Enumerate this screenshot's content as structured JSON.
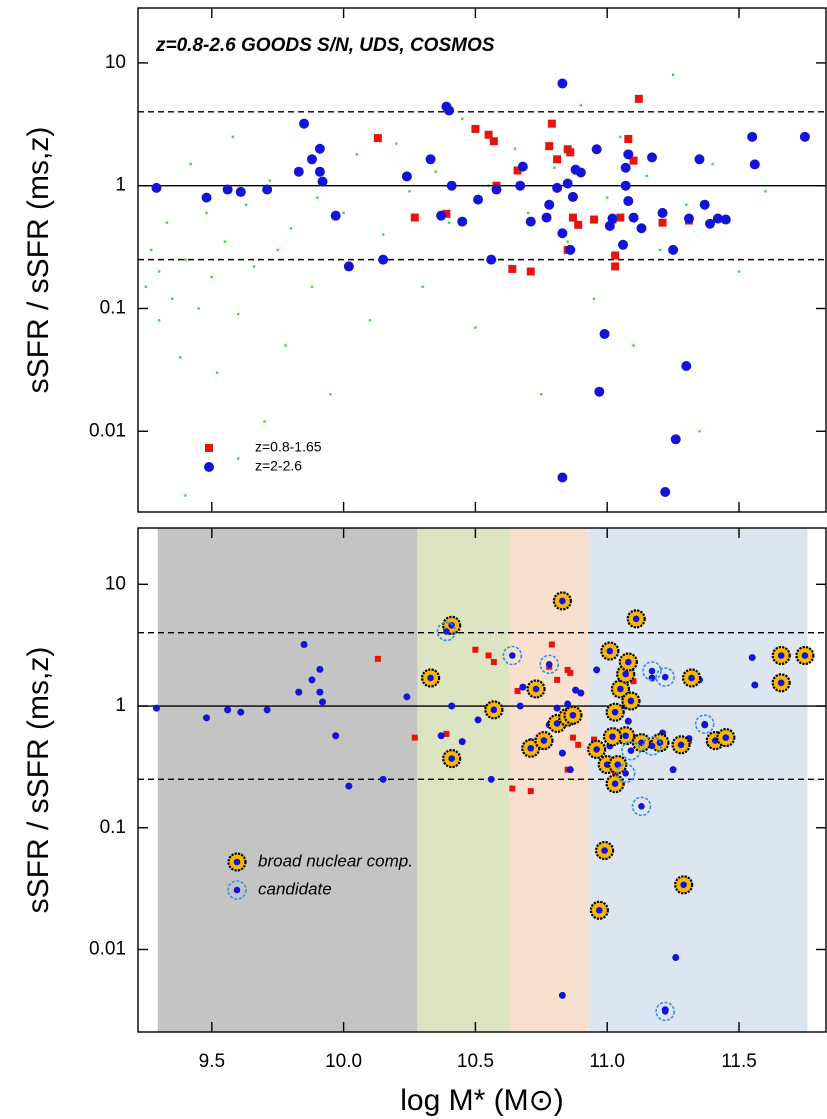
{
  "chart_data": [
    {
      "type": "scatter",
      "title": "z=0.8-2.6 GOODS S/N, UDS, COSMOS",
      "y_label": "sSFR / sSFR (ms,z)",
      "ylog": true,
      "xlim": [
        9.22,
        11.83
      ],
      "ylim": [
        0.0022,
        28
      ],
      "xticks": [
        9.5,
        {
          "value": 10,
          "label": "10.0"
        },
        10.5,
        {
          "value": 11,
          "label": "11.0"
        },
        11.5
      ],
      "yticks": [
        0.01,
        0.1,
        1,
        10
      ],
      "hlines": [
        {
          "value": 4,
          "dash": true
        },
        {
          "value": 1,
          "dash": false
        },
        {
          "value": 0.25,
          "dash": true
        }
      ],
      "legend": "lower left",
      "field_points": {
        "color": "#33e033",
        "x": [
          9.25,
          9.27,
          9.3,
          9.3,
          9.33,
          9.35,
          9.38,
          9.4,
          9.42,
          9.45,
          9.48,
          9.5,
          9.52,
          9.55,
          9.58,
          9.6,
          9.63,
          9.66,
          9.7,
          9.72,
          9.75,
          9.78,
          9.8,
          9.85,
          9.88,
          9.9,
          9.95,
          10.0,
          10.05,
          10.1,
          10.15,
          10.2,
          10.25,
          10.3,
          10.35,
          10.4,
          10.45,
          10.5,
          10.55,
          10.6,
          10.65,
          10.7,
          10.75,
          10.8,
          10.85,
          10.9,
          10.95,
          11.0,
          11.05,
          11.1,
          11.15,
          11.2,
          11.25,
          11.3,
          11.35,
          11.4,
          11.5,
          11.6,
          9.4,
          9.6
        ],
        "y": [
          0.15,
          0.3,
          0.08,
          0.2,
          0.5,
          0.12,
          0.04,
          0.25,
          1.5,
          0.1,
          0.6,
          0.18,
          0.03,
          0.35,
          2.5,
          0.09,
          0.7,
          0.22,
          0.012,
          1.1,
          0.3,
          0.05,
          0.45,
          3.0,
          0.15,
          0.8,
          0.02,
          0.6,
          1.8,
          0.08,
          0.4,
          2.2,
          0.9,
          0.15,
          1.3,
          0.5,
          3.5,
          0.07,
          1.0,
          0.25,
          2.0,
          0.6,
          0.02,
          1.4,
          0.35,
          4.5,
          0.12,
          0.8,
          2.5,
          0.05,
          1.2,
          0.3,
          8,
          0.7,
          0.01,
          1.5,
          0.2,
          0.9,
          0.003,
          0.006
        ]
      },
      "series": [
        {
          "name": "z=0.8-1.65",
          "color": "#e8140c",
          "marker": "square",
          "marker_size": 8,
          "x": [
            10.13,
            10.27,
            10.39,
            10.5,
            10.55,
            10.58,
            10.57,
            10.66,
            10.79,
            10.78,
            10.81,
            10.85,
            10.86,
            10.64,
            10.71,
            10.85,
            10.87,
            10.95,
            11.02,
            11.03,
            11.03,
            11.05,
            11.08,
            11.1,
            11.12,
            11.21,
            11.31,
            10.89
          ],
          "y": [
            2.44,
            0.55,
            0.59,
            2.9,
            2.6,
            1.0,
            2.3,
            1.33,
            3.2,
            2.1,
            1.64,
            1.98,
            1.87,
            0.21,
            0.2,
            0.3,
            0.55,
            0.53,
            0.53,
            0.27,
            0.22,
            0.55,
            2.4,
            1.6,
            5.1,
            0.5,
            0.52,
            0.48
          ]
        },
        {
          "name": "z=2-2.6",
          "color": "#1414d8",
          "marker": "circle",
          "marker_size": 10,
          "x": [
            9.29,
            9.48,
            9.56,
            9.61,
            9.71,
            9.85,
            9.83,
            9.88,
            9.91,
            9.91,
            9.92,
            9.97,
            10.02,
            10.15,
            10.24,
            10.33,
            10.4,
            10.39,
            10.37,
            10.41,
            10.45,
            10.51,
            10.56,
            10.58,
            10.68,
            10.67,
            10.71,
            10.77,
            10.78,
            10.81,
            10.83,
            10.85,
            10.87,
            10.88,
            10.83,
            10.86,
            10.9,
            10.96,
            10.99,
            10.97,
            11.02,
            11.06,
            11.07,
            11.07,
            11.08,
            11.1,
            11.13,
            11.17,
            11.21,
            11.25,
            11.26,
            11.3,
            11.22,
            11.31,
            11.37,
            11.35,
            11.39,
            11.42,
            11.45,
            11.55,
            11.56,
            11.75,
            10.83,
            11.01,
            11.08
          ],
          "y": [
            0.96,
            0.8,
            0.93,
            0.89,
            0.93,
            3.2,
            1.3,
            1.64,
            2.0,
            1.3,
            1.08,
            0.57,
            0.22,
            0.25,
            1.19,
            1.64,
            4.1,
            4.4,
            0.57,
            1.0,
            0.51,
            0.77,
            0.25,
            0.93,
            1.43,
            1.0,
            0.51,
            0.55,
            0.7,
            0.96,
            6.8,
            1.04,
            0.81,
            1.35,
            0.41,
            0.3,
            1.28,
            1.98,
            0.062,
            0.021,
            0.54,
            0.33,
            1.0,
            1.4,
            1.8,
            0.55,
            0.45,
            1.7,
            0.6,
            0.3,
            0.0086,
            0.034,
            0.0032,
            0.54,
            0.7,
            1.64,
            0.49,
            0.54,
            0.53,
            2.5,
            1.49,
            2.5,
            0.0042,
            0.47,
            0.75
          ]
        }
      ]
    },
    {
      "type": "scatter",
      "y_label": "sSFR / sSFR (ms,z)",
      "x_label": "log M* (M⊙)",
      "ylog": true,
      "xlim": [
        9.22,
        11.83
      ],
      "ylim": [
        0.0021,
        29
      ],
      "xticks": [
        9.5,
        {
          "value": 10,
          "label": "10.0"
        },
        10.5,
        {
          "value": 11,
          "label": "11.0"
        },
        11.5
      ],
      "yticks": [
        0.01,
        0.1,
        1,
        10
      ],
      "hlines": [
        {
          "value": 4,
          "dash": true
        },
        {
          "value": 1,
          "dash": false
        },
        {
          "value": 0.25,
          "dash": true
        }
      ],
      "legend": "lower left",
      "bands": [
        {
          "x0": 9.295,
          "x1": 10.28,
          "color": "#c4c4c4"
        },
        {
          "x0": 10.28,
          "x1": 10.627,
          "color": "#dce4c2"
        },
        {
          "x0": 10.627,
          "x1": 10.93,
          "color": "#f8e0cf"
        },
        {
          "x0": 10.93,
          "x1": 11.76,
          "color": "#dde6f0"
        }
      ],
      "series": [
        {
          "color": "#e8140c",
          "marker": "square",
          "marker_size": 6,
          "x": [
            10.13,
            10.27,
            10.39,
            10.5,
            10.55,
            10.58,
            10.57,
            10.66,
            10.79,
            10.78,
            10.81,
            10.85,
            10.86,
            10.64,
            10.71,
            10.85,
            10.87,
            10.95,
            11.02,
            11.03,
            11.03,
            11.05,
            11.08,
            11.1,
            11.12,
            11.21,
            11.31,
            10.89
          ],
          "y": [
            2.44,
            0.55,
            0.59,
            2.9,
            2.6,
            1.0,
            2.3,
            1.33,
            3.2,
            2.1,
            1.64,
            1.98,
            1.87,
            0.21,
            0.2,
            0.3,
            0.55,
            0.53,
            0.53,
            0.27,
            0.22,
            0.55,
            2.4,
            1.6,
            5.1,
            0.5,
            0.52,
            0.48
          ]
        },
        {
          "color": "#1414d8",
          "marker": "circle",
          "marker_size": 7,
          "x": [
            9.29,
            9.48,
            9.56,
            9.61,
            9.71,
            9.85,
            9.83,
            9.88,
            9.91,
            9.91,
            9.92,
            9.97,
            10.02,
            10.15,
            10.24,
            10.33,
            10.4,
            10.39,
            10.37,
            10.41,
            10.45,
            10.51,
            10.56,
            10.58,
            10.68,
            10.67,
            10.71,
            10.77,
            10.78,
            10.81,
            10.83,
            10.85,
            10.87,
            10.88,
            10.83,
            10.86,
            10.9,
            10.96,
            10.99,
            10.97,
            11.02,
            11.06,
            11.07,
            11.07,
            11.08,
            11.1,
            11.13,
            11.17,
            11.21,
            11.25,
            11.26,
            11.3,
            11.22,
            11.31,
            11.37,
            11.35,
            11.39,
            11.42,
            11.45,
            11.55,
            11.56,
            11.75,
            10.83,
            11.01,
            11.08
          ],
          "y": [
            0.96,
            0.8,
            0.93,
            0.89,
            0.93,
            3.2,
            1.3,
            1.64,
            2.0,
            1.3,
            1.08,
            0.57,
            0.22,
            0.25,
            1.19,
            1.64,
            4.1,
            4.4,
            0.57,
            1.0,
            0.51,
            0.77,
            0.25,
            0.93,
            1.43,
            1.0,
            0.51,
            0.55,
            0.7,
            0.96,
            6.8,
            1.04,
            0.81,
            1.35,
            0.41,
            0.3,
            1.28,
            1.98,
            0.062,
            0.021,
            0.54,
            0.33,
            1.0,
            1.4,
            1.8,
            0.55,
            0.45,
            1.7,
            0.6,
            0.3,
            0.0086,
            0.034,
            0.0032,
            0.54,
            0.7,
            1.64,
            0.49,
            0.54,
            0.53,
            2.5,
            1.49,
            2.5,
            0.0042,
            0.47,
            0.75
          ]
        },
        {
          "name": "broad nuclear comp.",
          "color": "#f6b60a",
          "marker": "halo",
          "marker_size": 17,
          "x": [
            10.41,
            10.33,
            10.41,
            10.57,
            10.73,
            10.71,
            10.76,
            10.83,
            10.81,
            10.85,
            10.87,
            10.96,
            11.01,
            11.03,
            11.05,
            11.07,
            11.08,
            11.09,
            11.11,
            11.07,
            11.02,
            11.0,
            11.03,
            11.04,
            11.13,
            11.2,
            11.28,
            11.32,
            11.41,
            11.45,
            11.66,
            11.66,
            11.75,
            10.99,
            10.97,
            11.29
          ],
          "y": [
            4.6,
            1.7,
            0.37,
            0.93,
            1.38,
            0.45,
            0.52,
            7.3,
            0.72,
            0.81,
            0.84,
            0.44,
            2.83,
            0.89,
            1.38,
            1.83,
            2.3,
            1.1,
            5.2,
            0.57,
            0.56,
            0.33,
            0.23,
            0.33,
            0.5,
            0.5,
            0.48,
            1.7,
            0.52,
            0.55,
            2.6,
            1.55,
            2.6,
            0.065,
            0.021,
            0.034
          ]
        },
        {
          "name": "candidate",
          "color": "#3a8fe0",
          "marker": "ring",
          "marker_size": 18,
          "x": [
            10.39,
            10.64,
            10.78,
            11.09,
            11.07,
            11.17,
            11.22,
            11.17,
            11.13,
            11.37,
            11.22
          ],
          "y": [
            4.1,
            2.6,
            2.2,
            0.43,
            0.28,
            1.94,
            1.73,
            0.47,
            0.15,
            0.71,
            0.0031
          ]
        }
      ]
    }
  ]
}
